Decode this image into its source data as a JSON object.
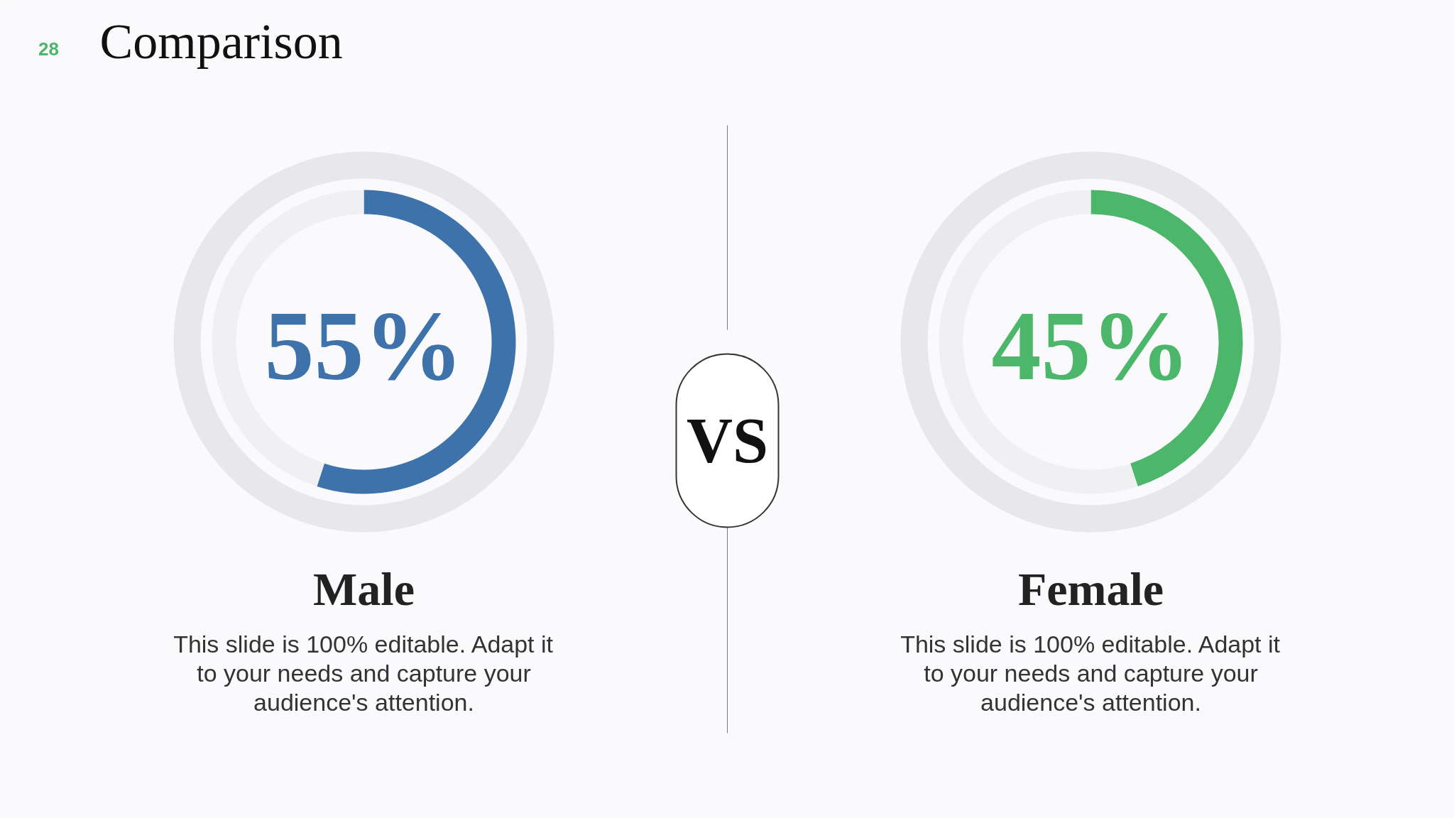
{
  "chart_data": [
    {
      "type": "other",
      "title": "Comparison",
      "annotations": [
        "28",
        "VS"
      ]
    },
    {
      "type": "donut",
      "title": "Male",
      "categories": [
        null,
        null
      ],
      "values": [
        55,
        45
      ],
      "colors": [
        "#3e72ab",
        "#f0f0f2"
      ],
      "value_labels": [
        "55%",
        null
      ],
      "annotations": [
        "This slide is 100% editable. Adapt it to your needs and capture your audience's attention."
      ]
    },
    {
      "type": "donut",
      "title": "Female",
      "categories": [
        null,
        null
      ],
      "values": [
        45,
        55
      ],
      "colors": [
        "#4cb76a",
        "#f0f0f2"
      ],
      "value_labels": [
        "45%",
        null
      ],
      "annotations": [
        "This slide is 100% editable. Adapt it to your needs and capture your audience's attention."
      ]
    }
  ]
}
